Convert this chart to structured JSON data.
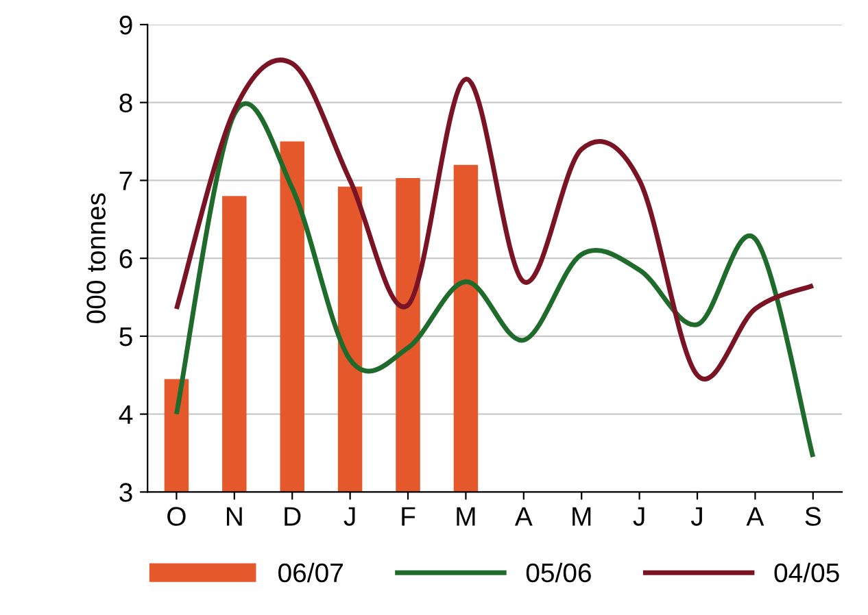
{
  "chart_data": {
    "type": "bar",
    "ylabel": "000 tonnes",
    "categories": [
      "O",
      "N",
      "D",
      "J",
      "F",
      "M",
      "A",
      "M",
      "J",
      "J",
      "A",
      "S"
    ],
    "series": [
      {
        "name": "06/07",
        "color": "#e4582c",
        "values": [
          4.45,
          6.8,
          7.5,
          6.92,
          7.03,
          7.2,
          null,
          null,
          null,
          null,
          null,
          null
        ]
      },
      {
        "name": "05/06",
        "type": "line",
        "color": "#1f6b2c",
        "values": [
          4.0,
          7.85,
          6.9,
          4.7,
          4.85,
          5.7,
          4.95,
          6.05,
          5.85,
          5.15,
          6.25,
          3.45
        ]
      },
      {
        "name": "04/05",
        "type": "line",
        "color": "#7a1424",
        "values": [
          5.35,
          7.9,
          8.5,
          7.0,
          5.4,
          8.3,
          5.7,
          7.4,
          7.0,
          4.5,
          5.35,
          5.65
        ]
      }
    ],
    "ylim": [
      3,
      9
    ],
    "yticks": [
      3,
      4,
      5,
      6,
      7,
      8,
      9
    ],
    "grid": "y",
    "legend": "bottom"
  }
}
